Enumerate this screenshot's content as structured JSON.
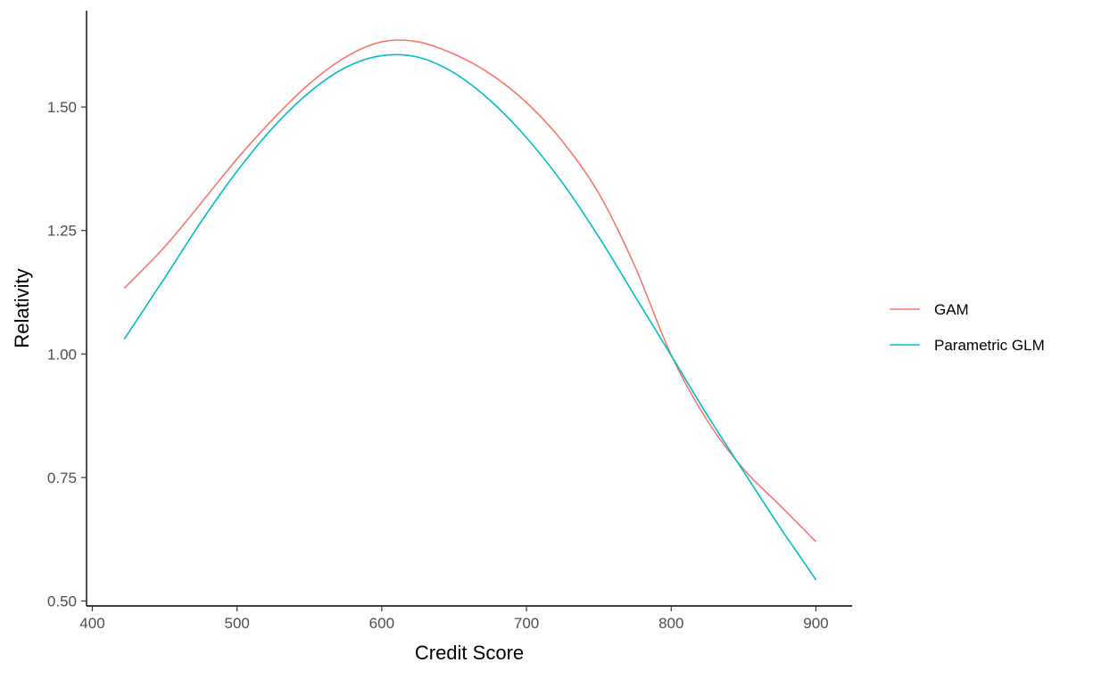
{
  "chart_data": {
    "type": "line",
    "title": "",
    "xlabel": "Credit Score",
    "ylabel": "Relativity",
    "xlim": [
      396,
      925
    ],
    "ylim": [
      0.49,
      1.695
    ],
    "x_ticks": [
      400,
      500,
      600,
      700,
      800,
      900
    ],
    "x_tick_labels": [
      "400",
      "500",
      "600",
      "700",
      "800",
      "900"
    ],
    "y_ticks": [
      0.5,
      0.75,
      1.0,
      1.25,
      1.5
    ],
    "y_tick_labels": [
      "0.50",
      "0.75",
      "1.00",
      "1.25",
      "1.50"
    ],
    "grid": false,
    "legend_position": "right",
    "series": [
      {
        "name": "GAM",
        "color": "#F8766D",
        "x": [
          422,
          450,
          475,
          500,
          525,
          550,
          575,
          600,
          625,
          650,
          675,
          700,
          725,
          750,
          775,
          800,
          825,
          850,
          875,
          900
        ],
        "y": [
          1.133,
          1.217,
          1.305,
          1.395,
          1.476,
          1.547,
          1.601,
          1.632,
          1.632,
          1.607,
          1.567,
          1.509,
          1.43,
          1.325,
          1.177,
          0.998,
          0.865,
          0.767,
          0.694,
          0.62
        ]
      },
      {
        "name": "Parametric GLM",
        "color": "#00BFC4",
        "x": [
          422,
          450,
          475,
          500,
          525,
          550,
          575,
          600,
          625,
          650,
          675,
          700,
          725,
          750,
          775,
          800,
          825,
          850,
          875,
          900
        ],
        "y": [
          1.03,
          1.154,
          1.267,
          1.37,
          1.459,
          1.53,
          1.58,
          1.604,
          1.601,
          1.569,
          1.513,
          1.438,
          1.346,
          1.237,
          1.117,
          0.997,
          0.876,
          0.762,
          0.65,
          0.543
        ]
      }
    ]
  }
}
